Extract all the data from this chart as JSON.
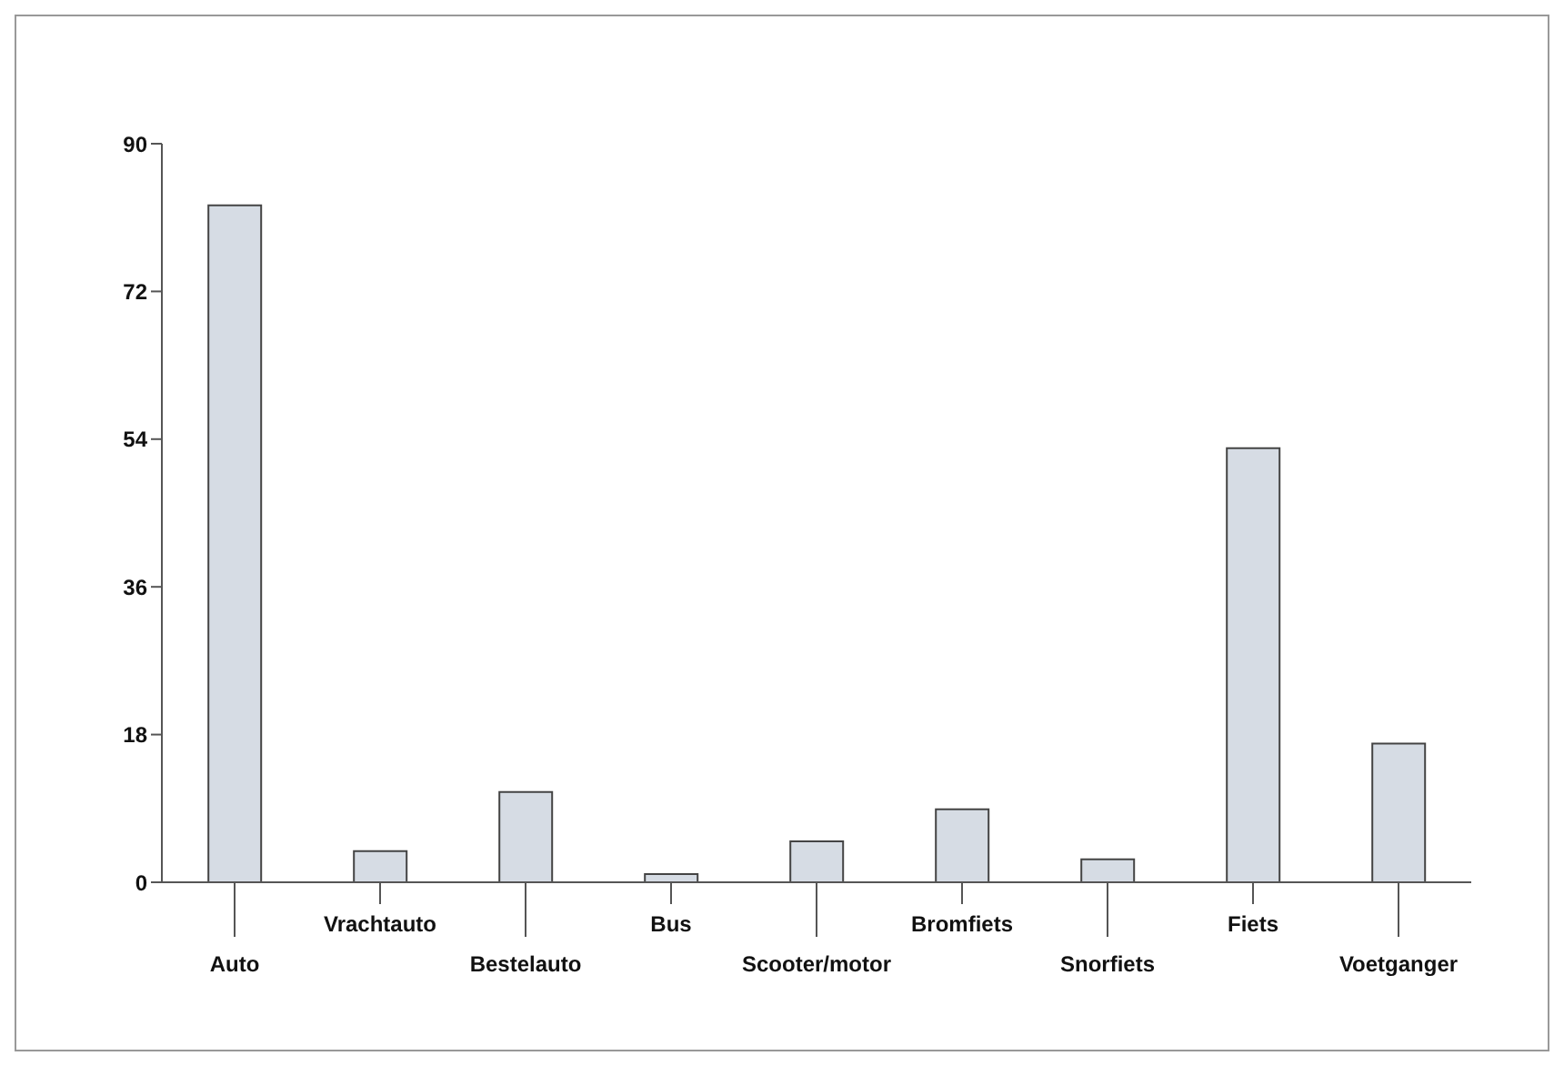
{
  "chart_data": {
    "type": "bar",
    "categories": [
      "Auto",
      "Vrachtauto",
      "Bestelauto",
      "Bus",
      "Scooter/motor",
      "Bromfiets",
      "Snorfiets",
      "Fiets",
      "Voetganger"
    ],
    "values": [
      82.5,
      3.8,
      11,
      1,
      5,
      8.9,
      2.8,
      52.9,
      16.9
    ],
    "color": "#d6dce4",
    "ylim": [
      0,
      90
    ],
    "yticks": [
      0,
      18,
      36,
      54,
      72,
      90
    ],
    "grid": false,
    "legend": false
  }
}
